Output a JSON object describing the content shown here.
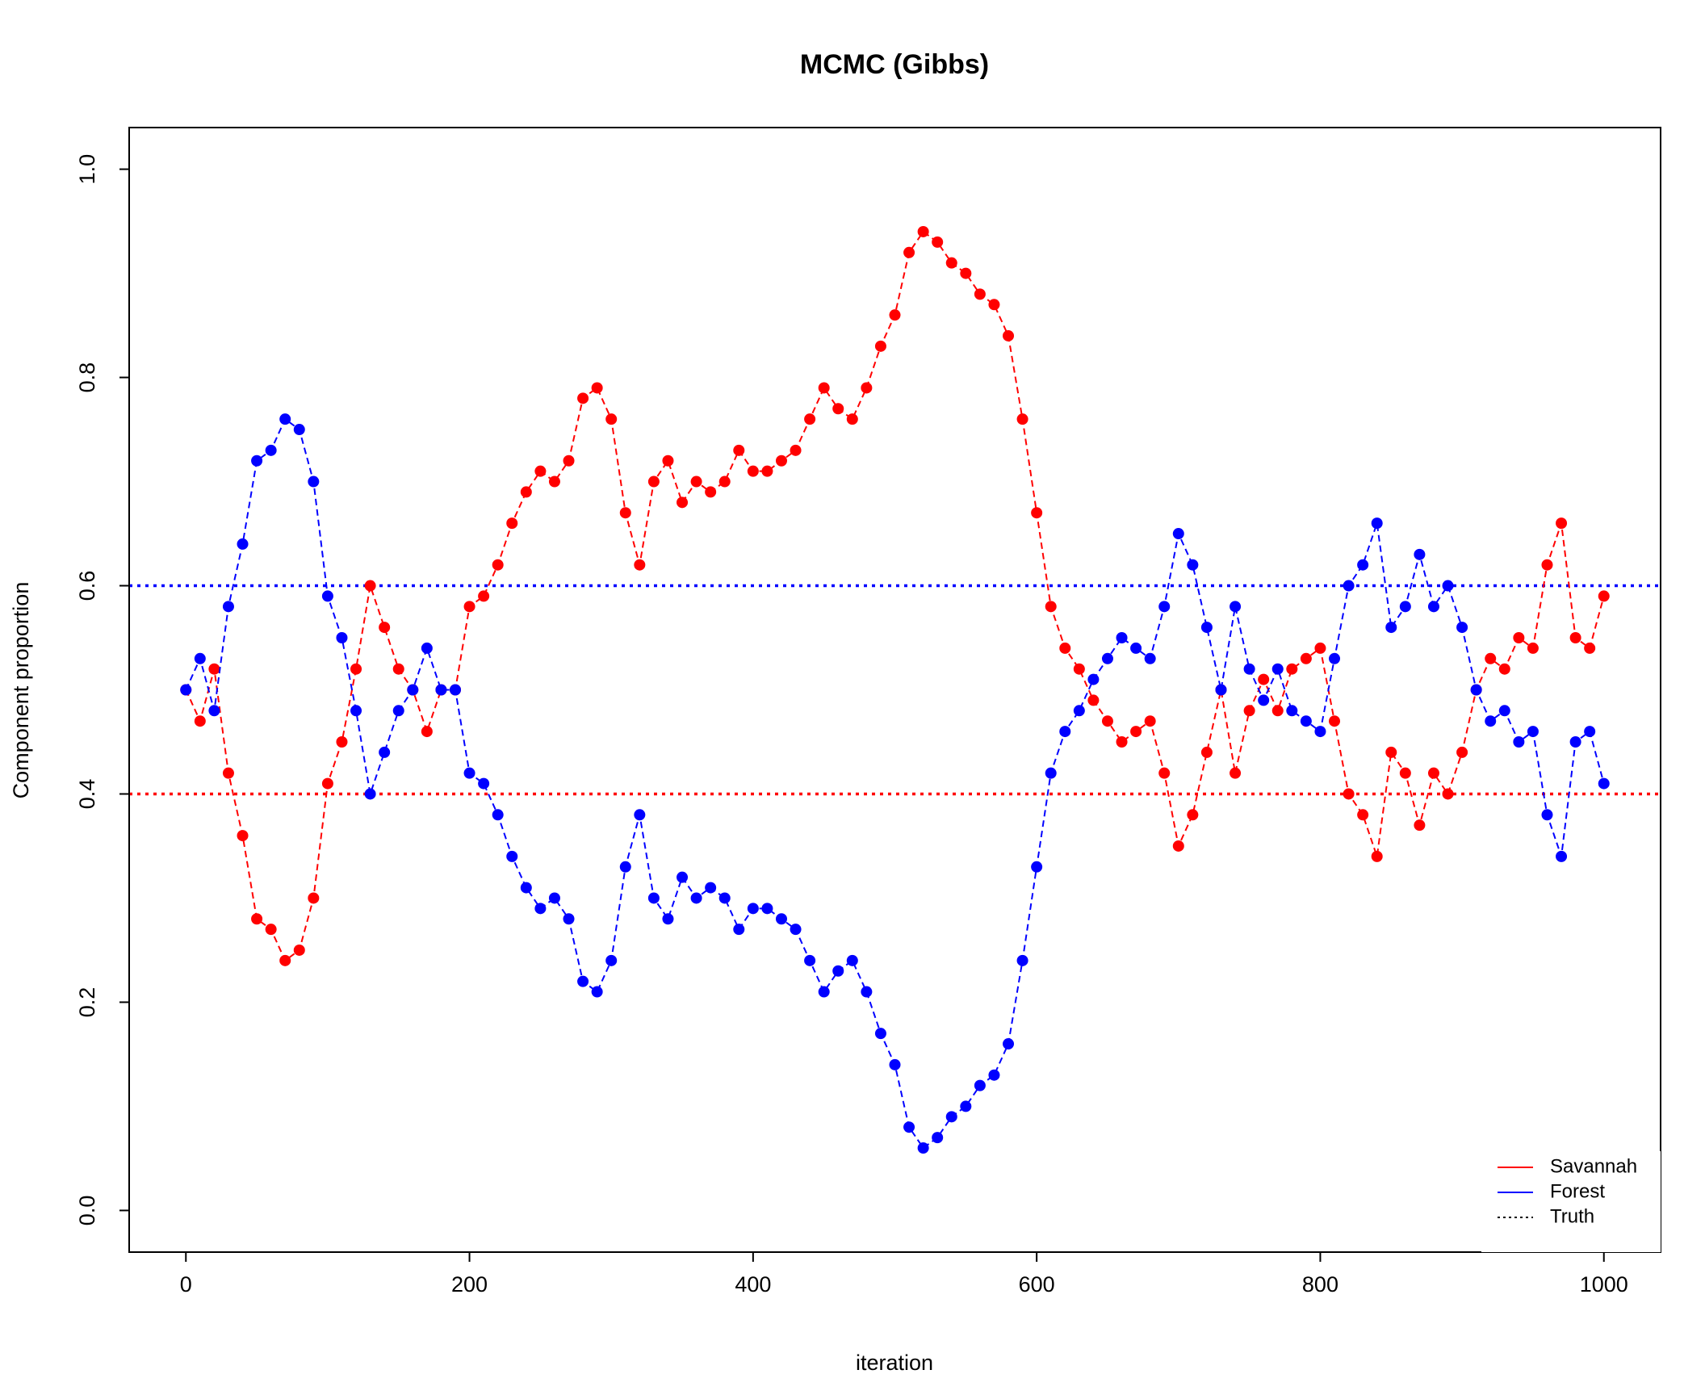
{
  "chart_data": {
    "type": "line",
    "title": "MCMC (Gibbs)",
    "x_label": "iteration",
    "y_label": "Component proportion",
    "x": [
      0,
      10,
      20,
      30,
      40,
      50,
      60,
      70,
      80,
      90,
      100,
      110,
      120,
      130,
      140,
      150,
      160,
      170,
      180,
      190,
      200,
      210,
      220,
      230,
      240,
      250,
      260,
      270,
      280,
      290,
      300,
      310,
      320,
      330,
      340,
      350,
      360,
      370,
      380,
      390,
      400,
      410,
      420,
      430,
      440,
      450,
      460,
      470,
      480,
      490,
      500,
      510,
      520,
      530,
      540,
      550,
      560,
      570,
      580,
      590,
      600,
      610,
      620,
      630,
      640,
      650,
      660,
      670,
      680,
      690,
      700,
      710,
      720,
      730,
      740,
      750,
      760,
      770,
      780,
      790,
      800,
      810,
      820,
      830,
      840,
      850,
      860,
      870,
      880,
      890,
      900,
      910,
      920,
      930,
      940,
      950,
      960,
      970,
      980,
      990,
      1000
    ],
    "series": [
      {
        "name": "Savannah",
        "color": "#ff0000",
        "values": [
          0.5,
          0.47,
          0.52,
          0.42,
          0.36,
          0.28,
          0.27,
          0.24,
          0.25,
          0.3,
          0.41,
          0.45,
          0.52,
          0.6,
          0.56,
          0.52,
          0.5,
          0.46,
          0.5,
          0.5,
          0.58,
          0.59,
          0.62,
          0.66,
          0.69,
          0.71,
          0.7,
          0.72,
          0.78,
          0.79,
          0.76,
          0.67,
          0.62,
          0.7,
          0.72,
          0.68,
          0.7,
          0.69,
          0.7,
          0.73,
          0.71,
          0.71,
          0.72,
          0.73,
          0.76,
          0.79,
          0.77,
          0.76,
          0.79,
          0.83,
          0.86,
          0.92,
          0.94,
          0.93,
          0.91,
          0.9,
          0.88,
          0.87,
          0.84,
          0.76,
          0.67,
          0.58,
          0.54,
          0.52,
          0.49,
          0.47,
          0.45,
          0.46,
          0.47,
          0.42,
          0.35,
          0.38,
          0.44,
          0.5,
          0.42,
          0.48,
          0.51,
          0.48,
          0.52,
          0.53,
          0.54,
          0.47,
          0.4,
          0.38,
          0.34,
          0.44,
          0.42,
          0.37,
          0.42,
          0.4,
          0.44,
          0.5,
          0.53,
          0.52,
          0.55,
          0.54,
          0.62,
          0.66,
          0.55,
          0.54,
          0.59
        ]
      },
      {
        "name": "Forest",
        "color": "#0000ff",
        "values": [
          0.5,
          0.53,
          0.48,
          0.58,
          0.64,
          0.72,
          0.73,
          0.76,
          0.75,
          0.7,
          0.59,
          0.55,
          0.48,
          0.4,
          0.44,
          0.48,
          0.5,
          0.54,
          0.5,
          0.5,
          0.42,
          0.41,
          0.38,
          0.34,
          0.31,
          0.29,
          0.3,
          0.28,
          0.22,
          0.21,
          0.24,
          0.33,
          0.38,
          0.3,
          0.28,
          0.32,
          0.3,
          0.31,
          0.3,
          0.27,
          0.29,
          0.29,
          0.28,
          0.27,
          0.24,
          0.21,
          0.23,
          0.24,
          0.21,
          0.17,
          0.14,
          0.08,
          0.06,
          0.07,
          0.09,
          0.1,
          0.12,
          0.13,
          0.16,
          0.24,
          0.33,
          0.42,
          0.46,
          0.48,
          0.51,
          0.53,
          0.55,
          0.54,
          0.53,
          0.58,
          0.65,
          0.62,
          0.56,
          0.5,
          0.58,
          0.52,
          0.49,
          0.52,
          0.48,
          0.47,
          0.46,
          0.53,
          0.6,
          0.62,
          0.66,
          0.56,
          0.58,
          0.63,
          0.58,
          0.6,
          0.56,
          0.5,
          0.47,
          0.48,
          0.45,
          0.46,
          0.38,
          0.34,
          0.45,
          0.46,
          0.41
        ]
      }
    ],
    "reference": {
      "name": "Truth",
      "lines": [
        {
          "value": 0.4,
          "color": "#ff0000"
        },
        {
          "value": 0.6,
          "color": "#0000ff"
        }
      ]
    },
    "xlim": [
      -40,
      1040
    ],
    "ylim": [
      -0.04,
      1.04
    ],
    "xticks": [
      0,
      200,
      400,
      600,
      800,
      1000
    ],
    "yticks": [
      {
        "value": 0,
        "label": "0.0"
      },
      0.2,
      0.4,
      0.6,
      0.8,
      {
        "value": 1,
        "label": "1.0"
      }
    ],
    "grid": false,
    "legend": "bottom-right"
  }
}
